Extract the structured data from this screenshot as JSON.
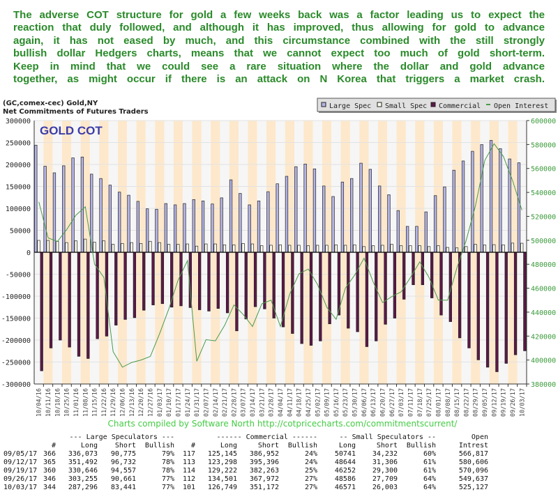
{
  "commentary": [
    "The adverse COT structure for gold a few weeks back was a factor leading us to expect the",
    "reaction that duly followed, and although it has improved, thus allowing for gold to advance",
    "again, it has not eased by much, and this circumstance combined with the still strongly",
    "bullish dollar Hedgers charts, means that we cannot expect too much of gold short-term.",
    "Keep in mind that we could see a rare situation where the dollar and gold advance",
    "together, as might occur if there is an attack on N Korea that triggers a market crash."
  ],
  "credit": "Charts compiled by Software North  http://cotpricecharts.com/commitmentscurrent/",
  "colors": {
    "large_spec": "#b4b4e6",
    "small_spec": "#fffff0",
    "commercial": "#5c1848",
    "open_interest": "#4a9a4a",
    "stripe_a": "#f6f6f6",
    "stripe_b": "#fde8cc",
    "commentary": "#2a8a2a",
    "credit": "#44cc44",
    "gold_label": "#3c3caa"
  },
  "chart_data": {
    "type": "bar",
    "title": "(GC,comex-cec) Gold,NY",
    "subtitle": "Net Commitments of Futures Traders",
    "label": "GOLD COT",
    "legend_position": "top-right",
    "legend": [
      "Large Spec",
      "Small Spec",
      "Commercial",
      "Open Interest"
    ],
    "ylim": [
      -300000,
      300000
    ],
    "y2lim": [
      380000,
      600000
    ],
    "yticks": [
      "300000",
      "250000",
      "200000",
      "150000",
      "100000",
      "50000",
      "0",
      "-50000",
      "-100000",
      "-150000",
      "-200000",
      "-250000",
      "-300000"
    ],
    "y2ticks": [
      "600000",
      "580000",
      "560000",
      "540000",
      "520000",
      "500000",
      "480000",
      "460000",
      "440000",
      "420000",
      "400000",
      "380000"
    ],
    "categories": [
      "10/04/16",
      "10/11/16",
      "10/18/16",
      "10/25/16",
      "11/01/16",
      "11/08/16",
      "11/15/16",
      "11/22/16",
      "11/29/16",
      "12/06/16",
      "12/13/16",
      "12/20/16",
      "12/27/16",
      "01/03/17",
      "01/10/17",
      "01/17/17",
      "01/24/17",
      "01/31/17",
      "02/07/17",
      "02/14/17",
      "02/21/17",
      "02/28/17",
      "03/07/17",
      "03/14/17",
      "03/21/17",
      "03/28/17",
      "04/04/17",
      "04/11/17",
      "04/18/17",
      "04/25/17",
      "05/02/17",
      "05/09/17",
      "05/16/17",
      "05/23/17",
      "05/30/17",
      "06/06/17",
      "06/13/17",
      "06/20/17",
      "06/27/17",
      "07/03/17",
      "07/11/17",
      "07/18/17",
      "07/25/17",
      "08/01/17",
      "08/08/17",
      "08/15/17",
      "08/22/17",
      "08/29/17",
      "09/05/17",
      "09/12/17",
      "09/19/17",
      "09/26/17",
      "10/03/17"
    ],
    "series": [
      {
        "name": "Large Spec",
        "axis": "left",
        "values": [
          244000,
          196000,
          181000,
          197000,
          215000,
          217000,
          178000,
          168000,
          153000,
          137000,
          130000,
          116000,
          99000,
          98000,
          111000,
          108000,
          111000,
          120000,
          117000,
          110000,
          124000,
          165000,
          134000,
          108000,
          117000,
          138000,
          156000,
          173000,
          195000,
          201000,
          190000,
          151000,
          127000,
          160000,
          168000,
          203000,
          189000,
          151000,
          131000,
          95000,
          59000,
          59000,
          92000,
          129000,
          149000,
          187000,
          208000,
          230000,
          245298,
          254760,
          236089,
          212594,
          203855
        ]
      },
      {
        "name": "Small Spec",
        "axis": "left",
        "values": [
          27000,
          27000,
          25000,
          22000,
          26000,
          30000,
          23000,
          26000,
          18000,
          20000,
          22000,
          20000,
          25000,
          22000,
          18000,
          18000,
          19000,
          14000,
          19000,
          19000,
          17000,
          17000,
          20000,
          19000,
          15000,
          16000,
          17000,
          16000,
          16000,
          15000,
          16000,
          16000,
          17000,
          16000,
          17000,
          13000,
          15000,
          16000,
          18000,
          15000,
          15000,
          15000,
          13000,
          15000,
          11000,
          10000,
          13000,
          18000,
          16509,
          17338,
          16952,
          20877,
          20568
        ]
      },
      {
        "name": "Commercial",
        "axis": "left",
        "values": [
          -270000,
          -218000,
          -200000,
          -216000,
          -237000,
          -242000,
          -197000,
          -191000,
          -166000,
          -153000,
          -149000,
          -132000,
          -120000,
          -117000,
          -125000,
          -122000,
          -126000,
          -131000,
          -134000,
          -128000,
          -138000,
          -179000,
          -152000,
          -124000,
          -129000,
          -150000,
          -170000,
          -185000,
          -208000,
          -212000,
          -202000,
          -163000,
          -143000,
          -173000,
          -181000,
          -215000,
          -202000,
          -164000,
          -150000,
          -107000,
          -74000,
          -74000,
          -104000,
          -143000,
          -158000,
          -195000,
          -218000,
          -245000,
          -261807,
          -272098,
          -253041,
          -233471,
          -224423
        ]
      },
      {
        "name": "Open Interest",
        "axis": "right",
        "values": [
          532000,
          502000,
          499000,
          509000,
          521000,
          528000,
          480000,
          469000,
          407000,
          394000,
          398000,
          400000,
          403000,
          422000,
          443000,
          467000,
          483000,
          399000,
          417000,
          416000,
          429000,
          446000,
          438000,
          428000,
          447000,
          450000,
          428000,
          455000,
          472000,
          476000,
          463000,
          444000,
          434000,
          460000,
          471000,
          485000,
          465000,
          448000,
          453000,
          457000,
          469000,
          482000,
          469000,
          450000,
          450000,
          477000,
          500000,
          529000,
          566817,
          580606,
          570096,
          549637,
          525127
        ]
      }
    ]
  },
  "table": {
    "group_headers": [
      "--- Large Speculators ---",
      "------ Commercial ------",
      "-- Small Speculators --",
      "Open"
    ],
    "columns": [
      "#",
      "Long",
      "Short",
      "Bullish",
      "#",
      "Long",
      "Short",
      "Bullish",
      "Long",
      "Short",
      "Bullish",
      "Intrest"
    ],
    "rows": [
      [
        "09/05/17",
        "366",
        "336,073",
        "90,775",
        "79%",
        "117",
        "125,145",
        "386,952",
        "24%",
        "50741",
        "34,232",
        "60%",
        "566,817"
      ],
      [
        "09/12/17",
        "365",
        "351,492",
        "96,732",
        "78%",
        "113",
        "123,298",
        "395,396",
        "24%",
        "48644",
        "31,306",
        "61%",
        "580,606"
      ],
      [
        "09/19/17",
        "360",
        "330,646",
        "94,557",
        "78%",
        "114",
        "129,222",
        "382,263",
        "25%",
        "46252",
        "29,300",
        "61%",
        "570,096"
      ],
      [
        "09/26/17",
        "346",
        "303,255",
        "90,661",
        "77%",
        "112",
        "134,501",
        "367,972",
        "27%",
        "48586",
        "27,709",
        "64%",
        "549,637"
      ],
      [
        "10/03/17",
        "344",
        "287,296",
        "83,441",
        "77%",
        "101",
        "126,749",
        "351,172",
        "27%",
        "46571",
        "26,003",
        "64%",
        "525,127"
      ]
    ]
  }
}
